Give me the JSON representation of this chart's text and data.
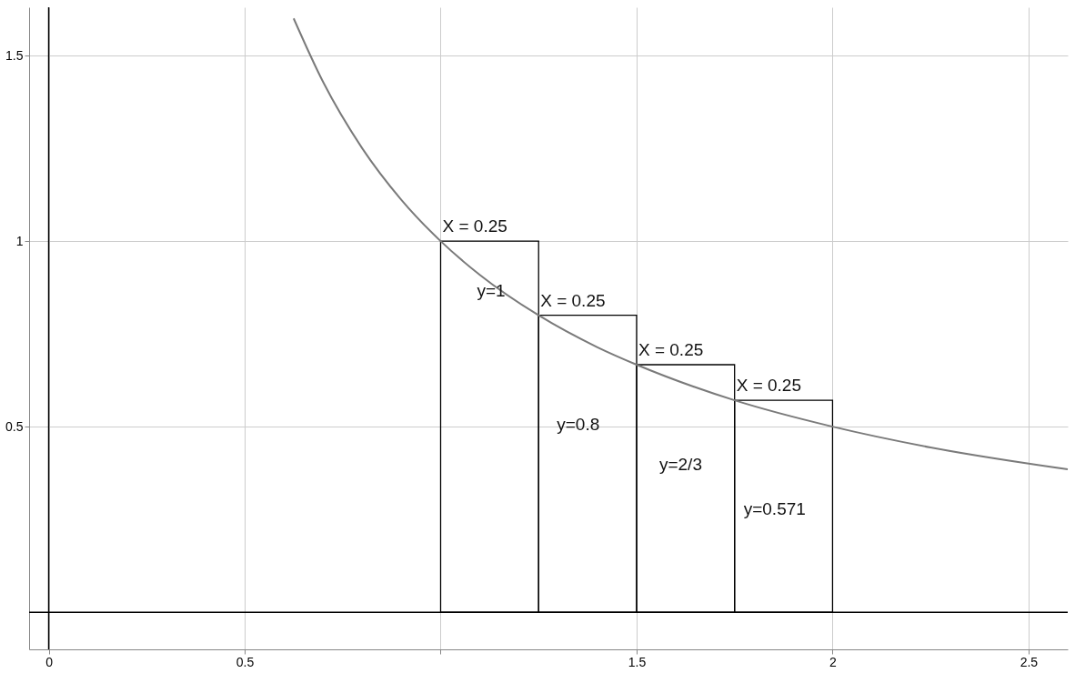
{
  "chart_data": {
    "type": "bar",
    "series": [
      {
        "color": "#000000",
        "x": [
          1.125,
          1.375,
          1.625,
          1.875
        ],
        "values": [
          1,
          0.8,
          0.667,
          0.571
        ]
      },
      {
        "type": "line",
        "color": "#7a7a7a",
        "x": [
          0.625,
          0.7,
          0.8,
          0.9,
          1,
          1.1,
          1.25,
          1.4,
          1.5,
          1.75,
          2,
          2.25,
          2.6
        ],
        "values": [
          1.6,
          1.429,
          1.25,
          1.111,
          1,
          0.909,
          0.8,
          0.714,
          0.667,
          0.571,
          0.5,
          0.444,
          0.385
        ]
      }
    ],
    "xlim": [
      -0.05,
      2.6
    ],
    "ylim": [
      -0.1,
      1.63
    ],
    "xticks": [
      0,
      0.5,
      {
        "value": 1,
        "label": null
      },
      1.5,
      2,
      2.5
    ],
    "yticks": [
      0.5,
      1,
      1.5
    ],
    "grid": true,
    "marker": "none",
    "line_style": "solid",
    "annotations": [
      "X = 0.25",
      "X = 0.25",
      "X = 0.25",
      "X = 0.25",
      "y=1",
      "y=0.8",
      "y=2/3",
      "y=0.571"
    ]
  }
}
